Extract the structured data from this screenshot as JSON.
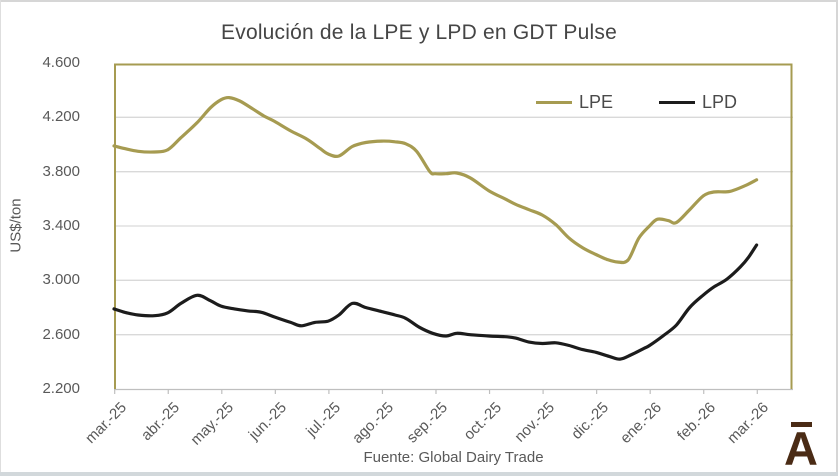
{
  "title": "Evolución de la LPE y LPD en GDT Pulse",
  "footer": {
    "source": "Fuente: Global Dairy Trade"
  },
  "logo": {
    "letter": "A",
    "color": "#4a2b15"
  },
  "colors": {
    "lpe": "#a69b51",
    "lpd": "#1c1c1c",
    "grid": "#d9d9d9",
    "axis": "#bfbfbf",
    "plot_border": "#a69b51",
    "text": "#595959"
  },
  "y_axis": {
    "title": "US$/ton",
    "tick_labels": [
      "4.600",
      "4.200",
      "3.800",
      "3.400",
      "3.000",
      "2.600",
      "2.200"
    ],
    "min": 2200,
    "max": 4600,
    "step": 400
  },
  "x_axis": {
    "tick_labels": [
      "mar.-25",
      "abr.-25",
      "may.-25",
      "jun.-25",
      "jul.-25",
      "ago.-25",
      "sep.-25",
      "oct.-25",
      "nov.-25",
      "dic.-25",
      "ene.-26",
      "feb.-26",
      "mar.-26"
    ],
    "months_shown": 12,
    "axis_max_months": 12.68
  },
  "legend": [
    {
      "label": "LPE",
      "color": "#a69b51"
    },
    {
      "label": "LPD",
      "color": "#1c1c1c"
    }
  ],
  "chart_data": {
    "type": "line",
    "title": "Evolución de la LPE y LPD en GDT Pulse",
    "xlabel": "",
    "ylabel": "US$/ton",
    "ylim": [
      2200,
      4600
    ],
    "grid": "horizontal",
    "legend_position": "top-right-inside",
    "x_unit": "months since mar.-25 tick (0 = mar.-25, 12 = mar.-26)",
    "x_tick_labels": [
      "mar.-25",
      "abr.-25",
      "may.-25",
      "jun.-25",
      "jul.-25",
      "ago.-25",
      "sep.-25",
      "oct.-25",
      "nov.-25",
      "dic.-25",
      "ene.-26",
      "feb.-26",
      "mar.-26"
    ],
    "series": [
      {
        "name": "LPE",
        "color": "#a69b51",
        "unit": "US$/ton",
        "points": [
          [
            0,
            3990
          ],
          [
            0.2,
            3970
          ],
          [
            0.45,
            3950
          ],
          [
            0.75,
            3945
          ],
          [
            1,
            3960
          ],
          [
            1.25,
            4050
          ],
          [
            1.55,
            4160
          ],
          [
            1.8,
            4270
          ],
          [
            2,
            4330
          ],
          [
            2.15,
            4345
          ],
          [
            2.35,
            4320
          ],
          [
            2.6,
            4260
          ],
          [
            2.8,
            4210
          ],
          [
            3,
            4170
          ],
          [
            3.3,
            4100
          ],
          [
            3.6,
            4040
          ],
          [
            3.85,
            3970
          ],
          [
            4,
            3930
          ],
          [
            4.2,
            3915
          ],
          [
            4.45,
            3985
          ],
          [
            4.7,
            4015
          ],
          [
            5,
            4025
          ],
          [
            5.25,
            4020
          ],
          [
            5.45,
            4005
          ],
          [
            5.65,
            3950
          ],
          [
            5.9,
            3800
          ],
          [
            6,
            3785
          ],
          [
            6.2,
            3785
          ],
          [
            6.4,
            3790
          ],
          [
            6.65,
            3755
          ],
          [
            7,
            3660
          ],
          [
            7.3,
            3600
          ],
          [
            7.5,
            3560
          ],
          [
            7.75,
            3520
          ],
          [
            8,
            3480
          ],
          [
            8.25,
            3410
          ],
          [
            8.5,
            3310
          ],
          [
            8.75,
            3240
          ],
          [
            9,
            3190
          ],
          [
            9.2,
            3155
          ],
          [
            9.4,
            3135
          ],
          [
            9.6,
            3150
          ],
          [
            9.8,
            3310
          ],
          [
            10,
            3400
          ],
          [
            10.15,
            3450
          ],
          [
            10.35,
            3440
          ],
          [
            10.5,
            3425
          ],
          [
            10.75,
            3520
          ],
          [
            11,
            3620
          ],
          [
            11.2,
            3650
          ],
          [
            11.5,
            3655
          ],
          [
            11.8,
            3700
          ],
          [
            12,
            3740
          ]
        ]
      },
      {
        "name": "LPD",
        "color": "#1c1c1c",
        "unit": "US$/ton",
        "points": [
          [
            0,
            2790
          ],
          [
            0.2,
            2765
          ],
          [
            0.45,
            2745
          ],
          [
            0.75,
            2740
          ],
          [
            1,
            2760
          ],
          [
            1.25,
            2830
          ],
          [
            1.55,
            2890
          ],
          [
            1.8,
            2850
          ],
          [
            2,
            2810
          ],
          [
            2.25,
            2790
          ],
          [
            2.5,
            2775
          ],
          [
            2.75,
            2765
          ],
          [
            3,
            2730
          ],
          [
            3.3,
            2690
          ],
          [
            3.5,
            2665
          ],
          [
            3.75,
            2690
          ],
          [
            4,
            2700
          ],
          [
            4.2,
            2745
          ],
          [
            4.45,
            2830
          ],
          [
            4.7,
            2800
          ],
          [
            5,
            2770
          ],
          [
            5.25,
            2745
          ],
          [
            5.45,
            2720
          ],
          [
            5.7,
            2655
          ],
          [
            5.95,
            2610
          ],
          [
            6.2,
            2590
          ],
          [
            6.4,
            2610
          ],
          [
            6.65,
            2600
          ],
          [
            7,
            2590
          ],
          [
            7.3,
            2585
          ],
          [
            7.5,
            2575
          ],
          [
            7.75,
            2545
          ],
          [
            8,
            2535
          ],
          [
            8.25,
            2540
          ],
          [
            8.5,
            2520
          ],
          [
            8.75,
            2490
          ],
          [
            9,
            2470
          ],
          [
            9.25,
            2440
          ],
          [
            9.45,
            2420
          ],
          [
            9.65,
            2450
          ],
          [
            9.9,
            2500
          ],
          [
            10,
            2520
          ],
          [
            10.25,
            2590
          ],
          [
            10.5,
            2670
          ],
          [
            10.75,
            2800
          ],
          [
            11,
            2890
          ],
          [
            11.2,
            2950
          ],
          [
            11.45,
            3010
          ],
          [
            11.7,
            3100
          ],
          [
            11.85,
            3170
          ],
          [
            12,
            3260
          ]
        ]
      }
    ]
  }
}
